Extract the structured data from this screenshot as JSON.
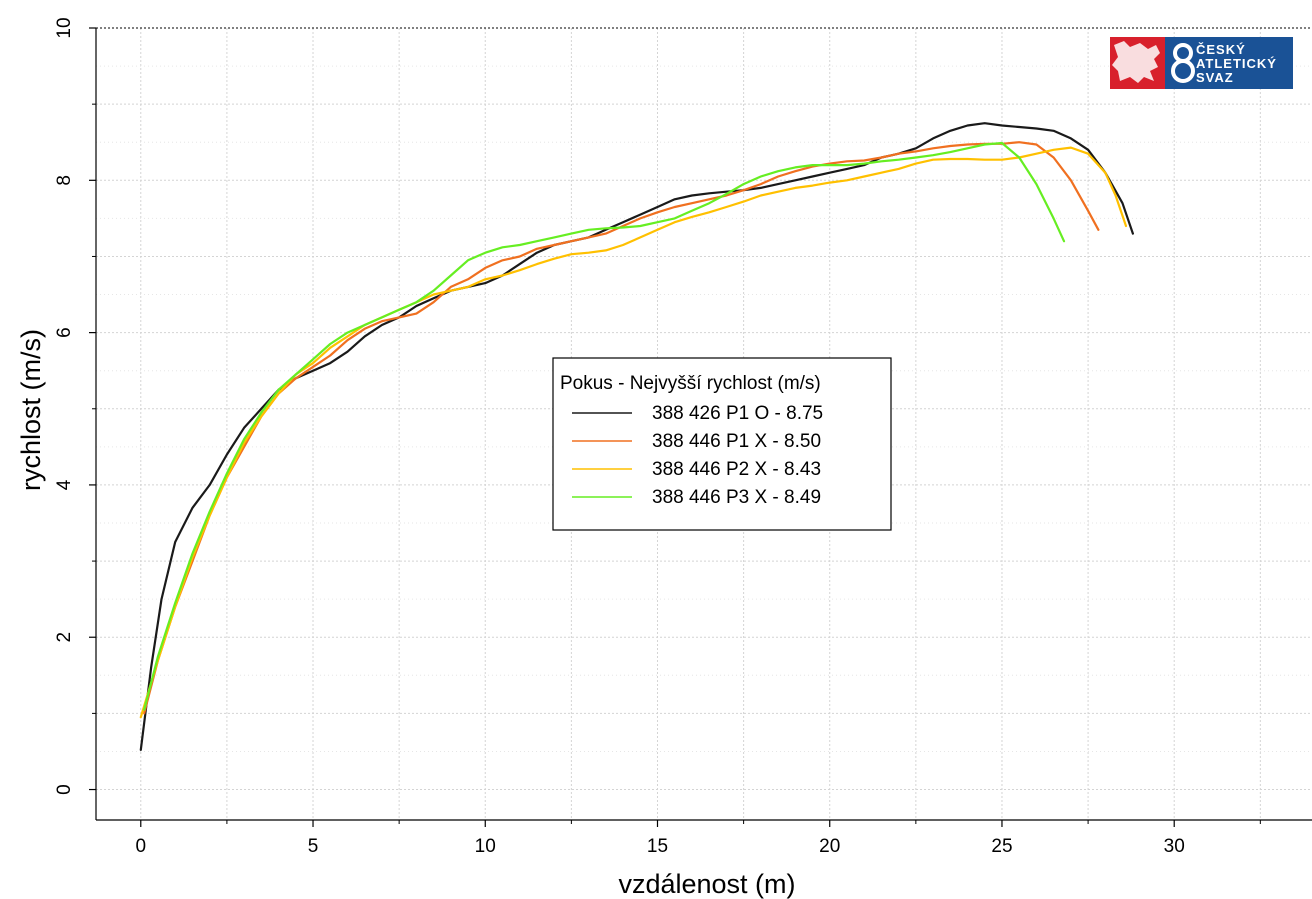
{
  "chart_data": {
    "type": "line",
    "xlabel": "vzdálenost (m)",
    "ylabel": "rychlost (m/s)",
    "xlim": [
      -1.3,
      34
    ],
    "ylim": [
      -0.4,
      10
    ],
    "x_ticks": [
      0,
      5,
      10,
      15,
      20,
      25,
      30
    ],
    "y_ticks": [
      0,
      2,
      4,
      6,
      8,
      10
    ],
    "grid": true,
    "legend": {
      "title": "Pokus - Nejvyšší rychlost (m/s)",
      "placement": "center"
    },
    "series": [
      {
        "name": "388 426 P1 O - 8.75",
        "color": "#1a1a1a",
        "points": [
          [
            0,
            0.52
          ],
          [
            0.3,
            1.6
          ],
          [
            0.6,
            2.5
          ],
          [
            1.0,
            3.25
          ],
          [
            1.5,
            3.7
          ],
          [
            2.0,
            4.0
          ],
          [
            2.5,
            4.4
          ],
          [
            3.0,
            4.75
          ],
          [
            3.5,
            5.0
          ],
          [
            4.0,
            5.25
          ],
          [
            4.5,
            5.4
          ],
          [
            5.0,
            5.5
          ],
          [
            5.5,
            5.6
          ],
          [
            6.0,
            5.75
          ],
          [
            6.5,
            5.95
          ],
          [
            7.0,
            6.1
          ],
          [
            7.5,
            6.2
          ],
          [
            8.0,
            6.35
          ],
          [
            8.5,
            6.45
          ],
          [
            9.0,
            6.55
          ],
          [
            9.5,
            6.6
          ],
          [
            10.0,
            6.65
          ],
          [
            10.5,
            6.75
          ],
          [
            11.0,
            6.9
          ],
          [
            11.5,
            7.05
          ],
          [
            12.0,
            7.15
          ],
          [
            12.5,
            7.2
          ],
          [
            13.0,
            7.25
          ],
          [
            13.5,
            7.35
          ],
          [
            14.0,
            7.45
          ],
          [
            14.5,
            7.55
          ],
          [
            15.0,
            7.65
          ],
          [
            15.5,
            7.75
          ],
          [
            16.0,
            7.8
          ],
          [
            16.5,
            7.83
          ],
          [
            17.0,
            7.85
          ],
          [
            17.5,
            7.87
          ],
          [
            18.0,
            7.9
          ],
          [
            18.5,
            7.95
          ],
          [
            19.0,
            8.0
          ],
          [
            19.5,
            8.05
          ],
          [
            20.0,
            8.1
          ],
          [
            20.5,
            8.15
          ],
          [
            21.0,
            8.2
          ],
          [
            21.5,
            8.3
          ],
          [
            22.0,
            8.35
          ],
          [
            22.5,
            8.42
          ],
          [
            23.0,
            8.55
          ],
          [
            23.5,
            8.65
          ],
          [
            24.0,
            8.72
          ],
          [
            24.5,
            8.75
          ],
          [
            25.0,
            8.72
          ],
          [
            25.5,
            8.7
          ],
          [
            26.0,
            8.68
          ],
          [
            26.5,
            8.65
          ],
          [
            27.0,
            8.55
          ],
          [
            27.5,
            8.4
          ],
          [
            28.0,
            8.1
          ],
          [
            28.5,
            7.7
          ],
          [
            28.8,
            7.3
          ]
        ]
      },
      {
        "name": "388 446 P1 X - 8.50",
        "color": "#f07020",
        "points": [
          [
            0.1,
            1.0
          ],
          [
            0.5,
            1.7
          ],
          [
            1.0,
            2.4
          ],
          [
            1.5,
            3.0
          ],
          [
            2.0,
            3.6
          ],
          [
            2.5,
            4.1
          ],
          [
            3.0,
            4.5
          ],
          [
            3.5,
            4.9
          ],
          [
            4.0,
            5.2
          ],
          [
            4.5,
            5.4
          ],
          [
            5.0,
            5.55
          ],
          [
            5.5,
            5.7
          ],
          [
            6.0,
            5.9
          ],
          [
            6.5,
            6.05
          ],
          [
            7.0,
            6.15
          ],
          [
            7.5,
            6.2
          ],
          [
            8.0,
            6.25
          ],
          [
            8.5,
            6.4
          ],
          [
            9.0,
            6.6
          ],
          [
            9.5,
            6.7
          ],
          [
            10.0,
            6.85
          ],
          [
            10.5,
            6.95
          ],
          [
            11.0,
            7.0
          ],
          [
            11.5,
            7.1
          ],
          [
            12.0,
            7.15
          ],
          [
            12.5,
            7.2
          ],
          [
            13.0,
            7.25
          ],
          [
            13.5,
            7.3
          ],
          [
            14.0,
            7.4
          ],
          [
            14.5,
            7.5
          ],
          [
            15.0,
            7.58
          ],
          [
            15.5,
            7.65
          ],
          [
            16.0,
            7.7
          ],
          [
            16.5,
            7.75
          ],
          [
            17.0,
            7.8
          ],
          [
            17.5,
            7.87
          ],
          [
            18.0,
            7.95
          ],
          [
            18.5,
            8.05
          ],
          [
            19.0,
            8.12
          ],
          [
            19.5,
            8.18
          ],
          [
            20.0,
            8.22
          ],
          [
            20.5,
            8.25
          ],
          [
            21.0,
            8.26
          ],
          [
            21.5,
            8.3
          ],
          [
            22.0,
            8.35
          ],
          [
            22.5,
            8.38
          ],
          [
            23.0,
            8.42
          ],
          [
            23.5,
            8.45
          ],
          [
            24.0,
            8.47
          ],
          [
            24.5,
            8.48
          ],
          [
            25.0,
            8.48
          ],
          [
            25.5,
            8.5
          ],
          [
            26.0,
            8.47
          ],
          [
            26.5,
            8.3
          ],
          [
            27.0,
            8.0
          ],
          [
            27.5,
            7.6
          ],
          [
            27.8,
            7.35
          ]
        ]
      },
      {
        "name": "388 446 P2 X - 8.43",
        "color": "#ffc000",
        "points": [
          [
            0.0,
            0.95
          ],
          [
            0.5,
            1.7
          ],
          [
            1.0,
            2.4
          ],
          [
            1.5,
            3.05
          ],
          [
            2.0,
            3.6
          ],
          [
            2.5,
            4.1
          ],
          [
            3.0,
            4.55
          ],
          [
            3.5,
            4.9
          ],
          [
            4.0,
            5.2
          ],
          [
            4.5,
            5.45
          ],
          [
            5.0,
            5.6
          ],
          [
            5.5,
            5.8
          ],
          [
            6.0,
            5.95
          ],
          [
            6.5,
            6.1
          ],
          [
            7.0,
            6.2
          ],
          [
            7.5,
            6.3
          ],
          [
            8.0,
            6.4
          ],
          [
            8.5,
            6.5
          ],
          [
            9.0,
            6.55
          ],
          [
            9.5,
            6.6
          ],
          [
            10.0,
            6.7
          ],
          [
            10.5,
            6.75
          ],
          [
            11.0,
            6.82
          ],
          [
            11.5,
            6.9
          ],
          [
            12.0,
            6.97
          ],
          [
            12.5,
            7.03
          ],
          [
            13.0,
            7.05
          ],
          [
            13.5,
            7.08
          ],
          [
            14.0,
            7.15
          ],
          [
            14.5,
            7.25
          ],
          [
            15.0,
            7.35
          ],
          [
            15.5,
            7.45
          ],
          [
            16.0,
            7.52
          ],
          [
            16.5,
            7.58
          ],
          [
            17.0,
            7.65
          ],
          [
            17.5,
            7.72
          ],
          [
            18.0,
            7.8
          ],
          [
            18.5,
            7.85
          ],
          [
            19.0,
            7.9
          ],
          [
            19.5,
            7.93
          ],
          [
            20.0,
            7.97
          ],
          [
            20.5,
            8.0
          ],
          [
            21.0,
            8.05
          ],
          [
            21.5,
            8.1
          ],
          [
            22.0,
            8.15
          ],
          [
            22.5,
            8.22
          ],
          [
            23.0,
            8.27
          ],
          [
            23.5,
            8.28
          ],
          [
            24.0,
            8.28
          ],
          [
            24.5,
            8.27
          ],
          [
            25.0,
            8.27
          ],
          [
            25.5,
            8.3
          ],
          [
            26.0,
            8.35
          ],
          [
            26.5,
            8.4
          ],
          [
            27.0,
            8.43
          ],
          [
            27.5,
            8.35
          ],
          [
            28.0,
            8.1
          ],
          [
            28.3,
            7.8
          ],
          [
            28.6,
            7.4
          ]
        ]
      },
      {
        "name": "388 446 P3 X - 8.49",
        "color": "#66ee22",
        "points": [
          [
            0.1,
            1.05
          ],
          [
            0.5,
            1.75
          ],
          [
            1.0,
            2.45
          ],
          [
            1.5,
            3.1
          ],
          [
            2.0,
            3.65
          ],
          [
            2.5,
            4.15
          ],
          [
            3.0,
            4.6
          ],
          [
            3.5,
            4.95
          ],
          [
            4.0,
            5.25
          ],
          [
            4.5,
            5.45
          ],
          [
            5.0,
            5.65
          ],
          [
            5.5,
            5.85
          ],
          [
            6.0,
            6.0
          ],
          [
            6.5,
            6.1
          ],
          [
            7.0,
            6.2
          ],
          [
            7.5,
            6.3
          ],
          [
            8.0,
            6.4
          ],
          [
            8.5,
            6.55
          ],
          [
            9.0,
            6.75
          ],
          [
            9.5,
            6.95
          ],
          [
            10.0,
            7.05
          ],
          [
            10.5,
            7.12
          ],
          [
            11.0,
            7.15
          ],
          [
            11.5,
            7.2
          ],
          [
            12.0,
            7.25
          ],
          [
            12.5,
            7.3
          ],
          [
            13.0,
            7.35
          ],
          [
            13.5,
            7.37
          ],
          [
            14.0,
            7.38
          ],
          [
            14.5,
            7.4
          ],
          [
            15.0,
            7.45
          ],
          [
            15.5,
            7.5
          ],
          [
            16.0,
            7.6
          ],
          [
            16.5,
            7.7
          ],
          [
            17.0,
            7.82
          ],
          [
            17.5,
            7.95
          ],
          [
            18.0,
            8.05
          ],
          [
            18.5,
            8.12
          ],
          [
            19.0,
            8.17
          ],
          [
            19.5,
            8.2
          ],
          [
            20.0,
            8.2
          ],
          [
            20.5,
            8.2
          ],
          [
            21.0,
            8.22
          ],
          [
            21.5,
            8.25
          ],
          [
            22.0,
            8.27
          ],
          [
            22.5,
            8.3
          ],
          [
            23.0,
            8.33
          ],
          [
            23.5,
            8.37
          ],
          [
            24.0,
            8.42
          ],
          [
            24.5,
            8.47
          ],
          [
            25.0,
            8.49
          ],
          [
            25.5,
            8.3
          ],
          [
            26.0,
            7.95
          ],
          [
            26.5,
            7.5
          ],
          [
            26.8,
            7.2
          ]
        ]
      }
    ]
  },
  "logo": {
    "name": "Český atletický svaz logo",
    "lines": [
      "ČESKÝ",
      "ATLETICKÝ",
      "SVAZ"
    ]
  }
}
